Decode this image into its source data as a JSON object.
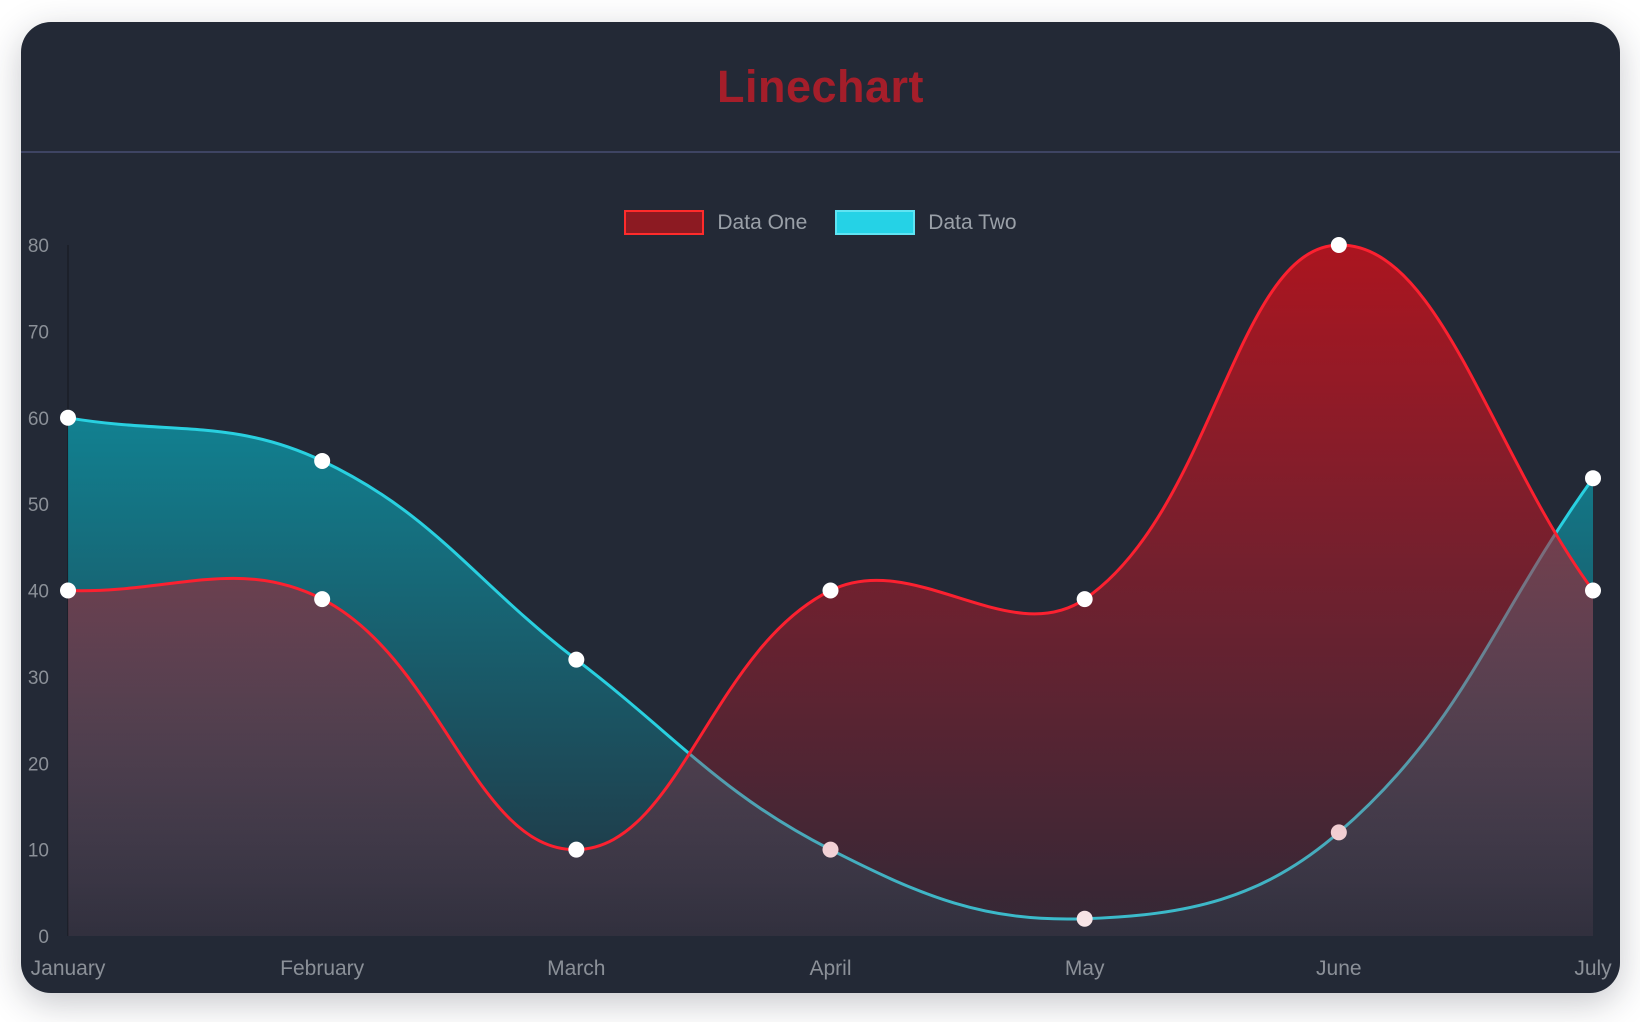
{
  "title": "Linechart",
  "legend": [
    {
      "label": "Data One",
      "swatch_fill": "#8c1a22",
      "swatch_border": "#ff2b2b"
    },
    {
      "label": "Data Two",
      "swatch_fill": "#25d2e6",
      "swatch_border": "#5fe3f2"
    }
  ],
  "chart_data": {
    "type": "line",
    "title": "Linechart",
    "categories": [
      "January",
      "February",
      "March",
      "April",
      "May",
      "June",
      "July"
    ],
    "series": [
      {
        "name": "Data One",
        "values": [
          40,
          39,
          10,
          40,
          39,
          80,
          40
        ],
        "line_color": "#fb2130",
        "fill_top": "rgba(190, 18, 28, 0.88)",
        "fill_bottom": "rgba(190, 30, 50, 0.10)",
        "point_color": "#ffffff"
      },
      {
        "name": "Data Two",
        "values": [
          60,
          55,
          32,
          10,
          2,
          12,
          53
        ],
        "line_color": "#29d0e0",
        "fill_top": "rgba(0, 214, 233, 0.66)",
        "fill_bottom": "rgba(0, 214, 233, 0.05)",
        "point_color": "#ffffff"
      }
    ],
    "ylim": [
      0,
      80
    ],
    "y_ticks": [
      0,
      10,
      20,
      30,
      40,
      50,
      60,
      70,
      80
    ],
    "xlabel": "",
    "ylabel": "",
    "grid": "left axis line only",
    "legend_position": "top-center",
    "curve": "smooth-spline",
    "point_radius": 8,
    "line_width": 3
  },
  "colors": {
    "page_background": "#ffffff",
    "card_background": "#232936",
    "title_color": "#a51e2a",
    "divider_color": "#3e4463",
    "axis_text_color": "#8b9098",
    "legend_text_color": "#9aa0a8",
    "axis_line_color": "rgba(0,0,0,0.28)"
  }
}
